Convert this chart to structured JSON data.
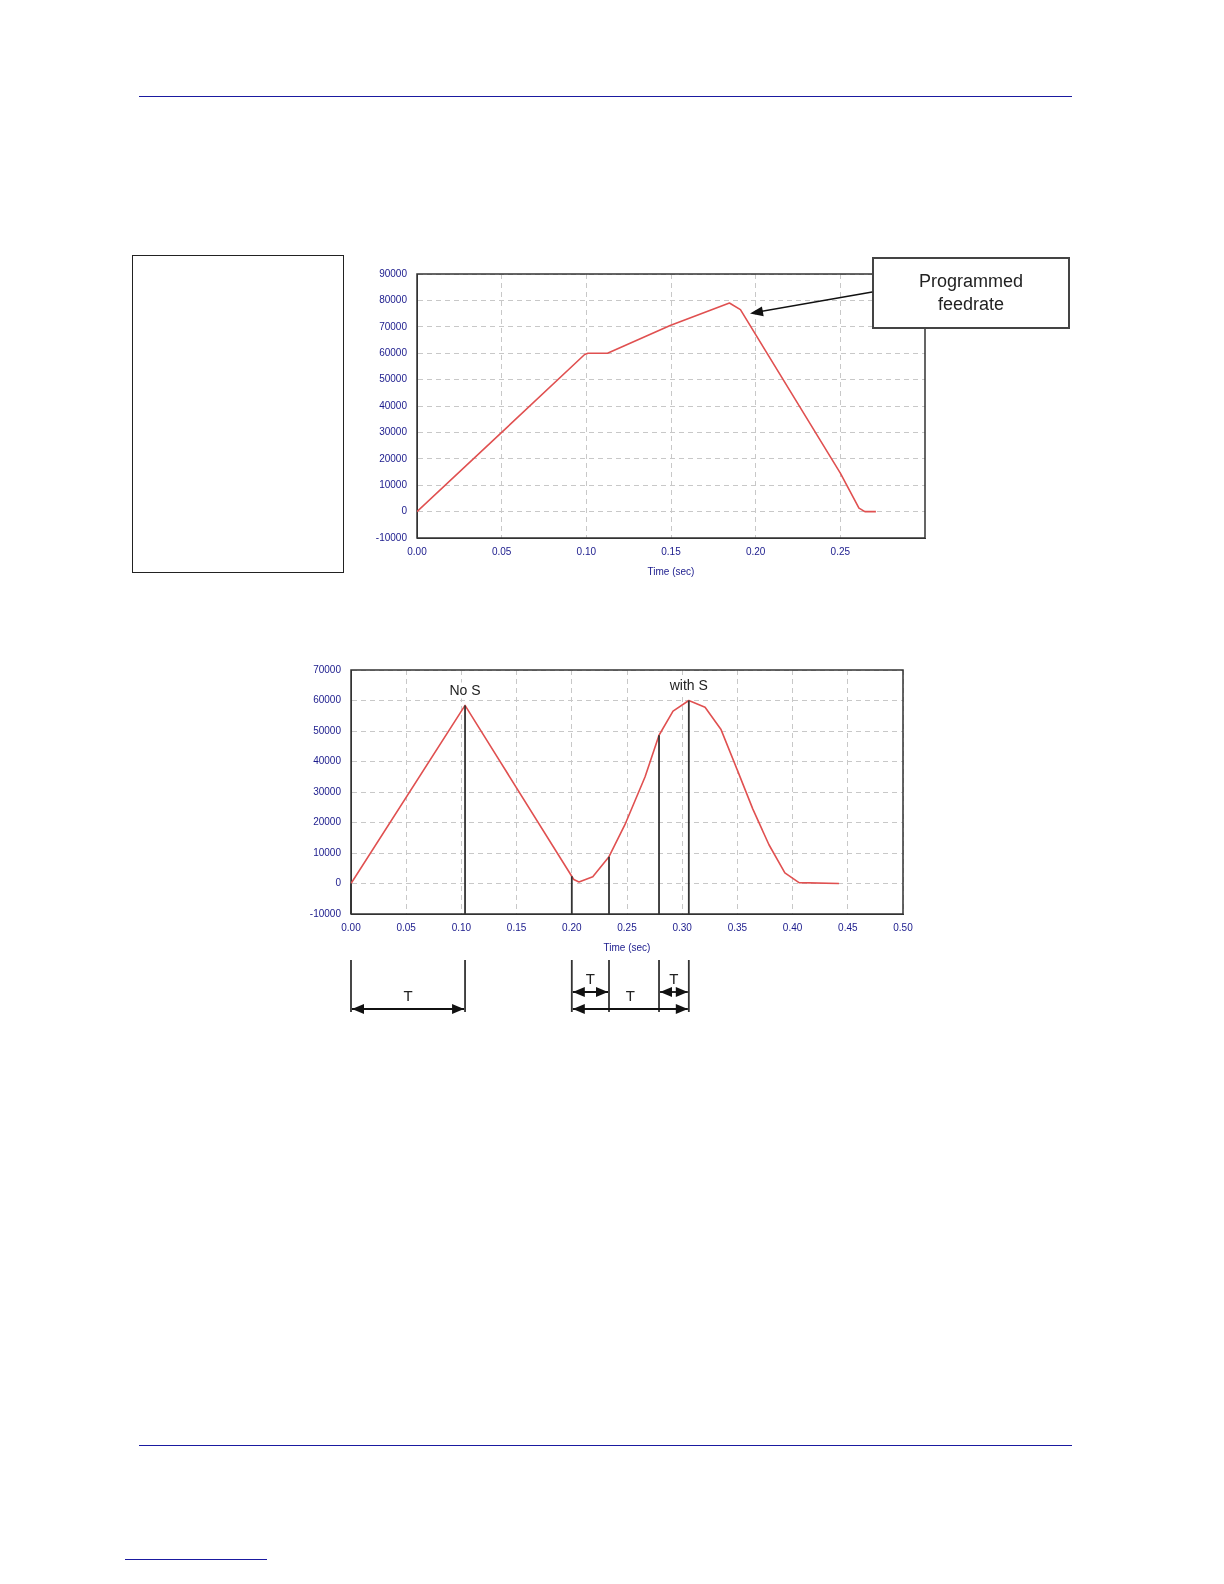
{
  "chart_data": [
    {
      "type": "line",
      "xlabel": "Time (sec)",
      "color": "#e05050",
      "x": [
        0,
        0.05,
        0.099,
        0.101,
        0.1125,
        0.1495,
        0.1845,
        0.191,
        0.25,
        0.261,
        0.2645,
        0.271
      ],
      "values": [
        0,
        30000,
        59500,
        60000,
        60000,
        70500,
        79000,
        76500,
        14600,
        1300,
        0,
        0
      ],
      "xlim": [
        0,
        0.3
      ],
      "xticks": [
        {
          "value": 0,
          "label": "0.00"
        },
        {
          "value": 0.05,
          "label": "0.05"
        },
        {
          "value": 0.1,
          "label": "0.10"
        },
        {
          "value": 0.15,
          "label": "0.15"
        },
        {
          "value": 0.2,
          "label": "0.20"
        },
        {
          "value": 0.25,
          "label": "0.25"
        }
      ],
      "ylim": [
        -10000,
        90000
      ],
      "yticks": [
        -10000,
        0,
        10000,
        20000,
        30000,
        40000,
        50000,
        60000,
        70000,
        80000,
        90000
      ],
      "grid": true,
      "legend": false,
      "marker": "none",
      "line_style": "solid",
      "annotations": [
        "Programmed feedrate"
      ]
    },
    {
      "type": "line",
      "xlabel": "Time (sec)",
      "color": "#e05050",
      "x": [
        0,
        0.1033,
        0.2018,
        0.2065,
        0.219,
        0.2337,
        0.248,
        0.2663,
        0.279,
        0.2917,
        0.306,
        0.3207,
        0.335,
        0.3496,
        0.364,
        0.3786,
        0.393,
        0.4058,
        0.442
      ],
      "values": [
        0,
        58400,
        1300,
        500,
        2200,
        8800,
        19200,
        34900,
        48600,
        56500,
        60000,
        57800,
        50600,
        37500,
        24400,
        12700,
        3500,
        300,
        0
      ],
      "xlim": [
        0,
        0.5
      ],
      "xticks": [
        {
          "value": 0,
          "label": "0.00"
        },
        {
          "value": 0.05,
          "label": "0.05"
        },
        {
          "value": 0.1,
          "label": "0.10"
        },
        {
          "value": 0.15,
          "label": "0.15"
        },
        {
          "value": 0.2,
          "label": "0.20"
        },
        {
          "value": 0.25,
          "label": "0.25"
        },
        {
          "value": 0.3,
          "label": "0.30"
        },
        {
          "value": 0.35,
          "label": "0.35"
        },
        {
          "value": 0.4,
          "label": "0.40"
        },
        {
          "value": 0.45,
          "label": "0.45"
        },
        {
          "value": 0.5,
          "label": "0.50"
        }
      ],
      "ylim": [
        -10000,
        70000
      ],
      "yticks": [
        -10000,
        0,
        10000,
        20000,
        30000,
        40000,
        50000,
        60000,
        70000
      ],
      "grid": true,
      "legend": false,
      "marker": "none",
      "line_style": "solid",
      "ref_lines": [
        {
          "axis": "x",
          "value": 0,
          "color": "#333333"
        },
        {
          "axis": "x",
          "value": 0.1033,
          "color": "#333333"
        },
        {
          "axis": "x",
          "value": 0.2,
          "color": "#333333"
        },
        {
          "axis": "x",
          "value": 0.2337,
          "color": "#333333"
        },
        {
          "axis": "x",
          "value": 0.279,
          "color": "#333333"
        },
        {
          "axis": "x",
          "value": 0.306,
          "color": "#333333"
        }
      ],
      "annotations": [
        {
          "text": "No S",
          "x": 0.1033,
          "y": 58400
        },
        {
          "text": "with S",
          "x": 0.306,
          "y": 60000
        },
        "T",
        "T",
        "T",
        "T"
      ]
    }
  ]
}
